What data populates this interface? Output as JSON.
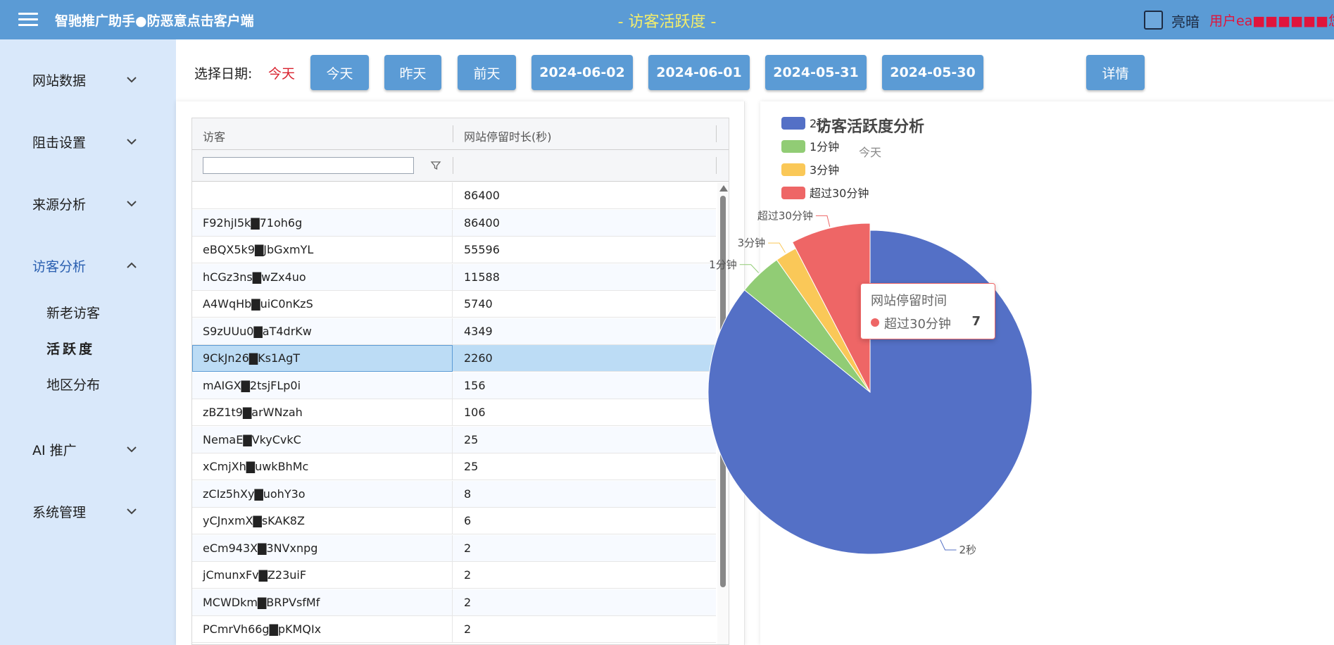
{
  "header": {
    "app_title": "智驰推广助手●防恶意点击客户端",
    "page_title": "- 访客活跃度 -",
    "theme_label": "亮暗",
    "user_text": "用户ea■■■■■■您好!"
  },
  "sidebar": {
    "items": [
      {
        "label": "网站数据"
      },
      {
        "label": "阻击设置"
      },
      {
        "label": "来源分析"
      },
      {
        "label": "访客分析"
      },
      {
        "label": "AI 推广"
      },
      {
        "label": "系统管理"
      }
    ],
    "sub_items": [
      {
        "label": "新老访客"
      },
      {
        "label": "活跃度"
      },
      {
        "label": "地区分布"
      }
    ]
  },
  "toolbar": {
    "date_label": "选择日期:",
    "current_date": "今天",
    "buttons": [
      "今天",
      "昨天",
      "前天",
      "2024-06-02",
      "2024-06-01",
      "2024-05-31",
      "2024-05-30"
    ],
    "detail_label": "详情"
  },
  "table": {
    "columns": [
      "访客",
      "网站停留时长(秒)"
    ],
    "filter_value": "",
    "rows": [
      {
        "visitor": "",
        "duration": "86400"
      },
      {
        "visitor": "F92hjI5k▇71oh6g",
        "duration": "86400"
      },
      {
        "visitor": "eBQX5k9▇JbGxmYL",
        "duration": "55596"
      },
      {
        "visitor": "hCGz3ns▇wZx4uo",
        "duration": "11588"
      },
      {
        "visitor": "A4WqHb▇uiC0nKzS",
        "duration": "5740"
      },
      {
        "visitor": "S9zUUu0▇aT4drKw",
        "duration": "4349"
      },
      {
        "visitor": "9CkJn26▇Ks1AgT",
        "duration": "2260"
      },
      {
        "visitor": "mAIGX▇2tsjFLp0i",
        "duration": "156"
      },
      {
        "visitor": "zBZ1t9▇arWNzah",
        "duration": "106"
      },
      {
        "visitor": "NemaE▇VkyCvkC",
        "duration": "25"
      },
      {
        "visitor": "xCmjXh▇uwkBhMc",
        "duration": "25"
      },
      {
        "visitor": "zCIz5hXy▇uohY3o",
        "duration": "8"
      },
      {
        "visitor": "yCJnxmX▇sKAK8Z",
        "duration": "6"
      },
      {
        "visitor": "eCm943X▇3NVxnpg",
        "duration": "2"
      },
      {
        "visitor": "jCmunxFv▇Z23uiF",
        "duration": "2"
      },
      {
        "visitor": "MCWDkm▇BRPVsfMf",
        "duration": "2"
      },
      {
        "visitor": "PCmrVh66g▇pKMQIx",
        "duration": "2"
      }
    ],
    "selected_index": 6
  },
  "chart_data": {
    "type": "pie",
    "title": "访客活跃度分析",
    "subtitle": "今天",
    "legend_position": "top-left",
    "slices": [
      {
        "name": "2秒",
        "value": 79,
        "color": "#5470c6"
      },
      {
        "name": "1分钟",
        "value": 4,
        "color": "#91cc75"
      },
      {
        "name": "3分钟",
        "value": 2,
        "color": "#fac858"
      },
      {
        "name": "超过30分钟",
        "value": 7,
        "color": "#ee6666"
      }
    ]
  },
  "tooltip": {
    "title": "网站停留时间",
    "series_name": "超过30分钟",
    "value": "7"
  }
}
